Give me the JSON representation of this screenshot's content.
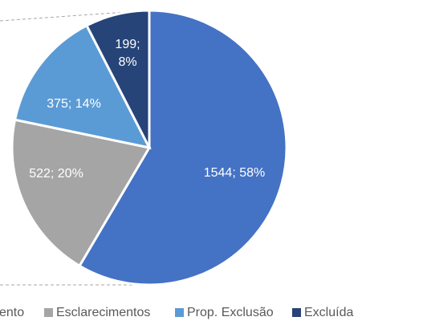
{
  "chart_data": {
    "type": "pie",
    "categories": [
      "ento",
      "Esclarecimentos",
      "Prop. Exclusão",
      "Excluída"
    ],
    "values": [
      1544,
      522,
      375,
      199
    ],
    "value_labels": [
      "1544; 58%",
      "522; 20%",
      "375; 14%",
      "199; 8%"
    ],
    "colors": [
      "#4472c4",
      "#a5a5a5",
      "#5b9bd5",
      "#264478"
    ],
    "legend": "bottom"
  }
}
